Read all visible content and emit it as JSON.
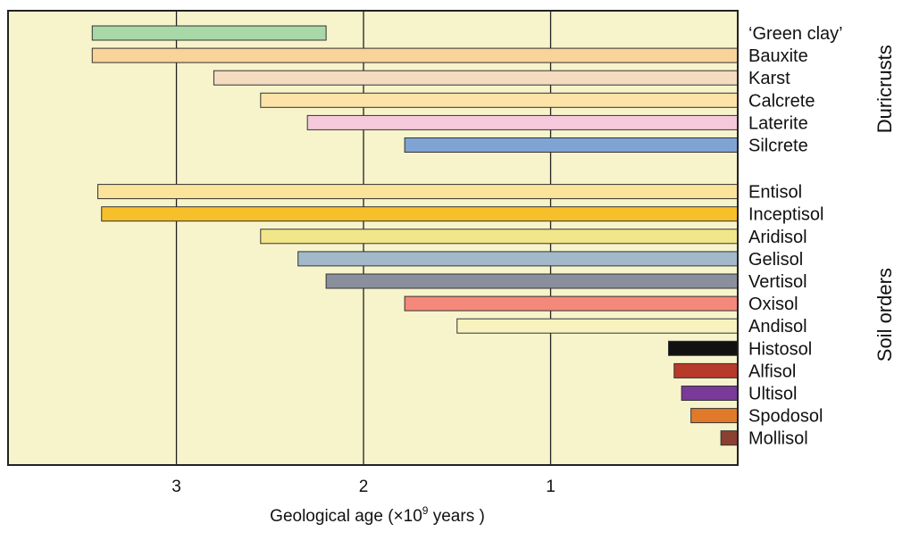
{
  "chart_data": {
    "type": "bar",
    "orientation": "horizontal",
    "x_axis_reversed": true,
    "xlabel_prefix": "Geological age (×10",
    "xlabel_exponent": "9",
    "xlabel_suffix": " years )",
    "xlim": [
      0,
      3.9
    ],
    "xticks": [
      3,
      2,
      1
    ],
    "xtick_labels": [
      "3",
      "2",
      "1"
    ],
    "grid": "vertical",
    "plot_background": "#f7f4cc",
    "groups": [
      {
        "label": "Duricrusts",
        "items": [
          {
            "name": "‘Green clay’",
            "start": 3.45,
            "end": 2.2,
            "color": "#a8d8a8"
          },
          {
            "name": "Bauxite",
            "start": 3.45,
            "end": 0,
            "color": "#f8d39a"
          },
          {
            "name": "Karst",
            "start": 2.8,
            "end": 0,
            "color": "#f5dcc0"
          },
          {
            "name": "Calcrete",
            "start": 2.55,
            "end": 0,
            "color": "#fde3a7"
          },
          {
            "name": "Laterite",
            "start": 2.3,
            "end": 0,
            "color": "#f5c8dc"
          },
          {
            "name": "Silcrete",
            "start": 1.78,
            "end": 0,
            "color": "#7fa4d4"
          }
        ]
      },
      {
        "label": "Soil orders",
        "items": [
          {
            "name": "Entisol",
            "start": 3.42,
            "end": 0,
            "color": "#fbe39a"
          },
          {
            "name": "Inceptisol",
            "start": 3.4,
            "end": 0,
            "color": "#f7bf2a"
          },
          {
            "name": "Aridisol",
            "start": 2.55,
            "end": 0,
            "color": "#f2e68a"
          },
          {
            "name": "Gelisol",
            "start": 2.35,
            "end": 0,
            "color": "#a3b9c9"
          },
          {
            "name": "Vertisol",
            "start": 2.2,
            "end": 0,
            "color": "#8a8f9c"
          },
          {
            "name": "Oxisol",
            "start": 1.78,
            "end": 0,
            "color": "#f4887a"
          },
          {
            "name": "Andisol",
            "start": 1.5,
            "end": 0,
            "color": "#f8f2bf"
          },
          {
            "name": "Histosol",
            "start": 0.37,
            "end": 0,
            "color": "#111111"
          },
          {
            "name": "Alfisol",
            "start": 0.34,
            "end": 0,
            "color": "#b83a2a"
          },
          {
            "name": "Ultisol",
            "start": 0.3,
            "end": 0,
            "color": "#7a3a9a"
          },
          {
            "name": "Spodosol",
            "start": 0.25,
            "end": 0,
            "color": "#e07a2a"
          },
          {
            "name": "Mollisol",
            "start": 0.09,
            "end": 0,
            "color": "#8b4030"
          }
        ]
      }
    ]
  }
}
